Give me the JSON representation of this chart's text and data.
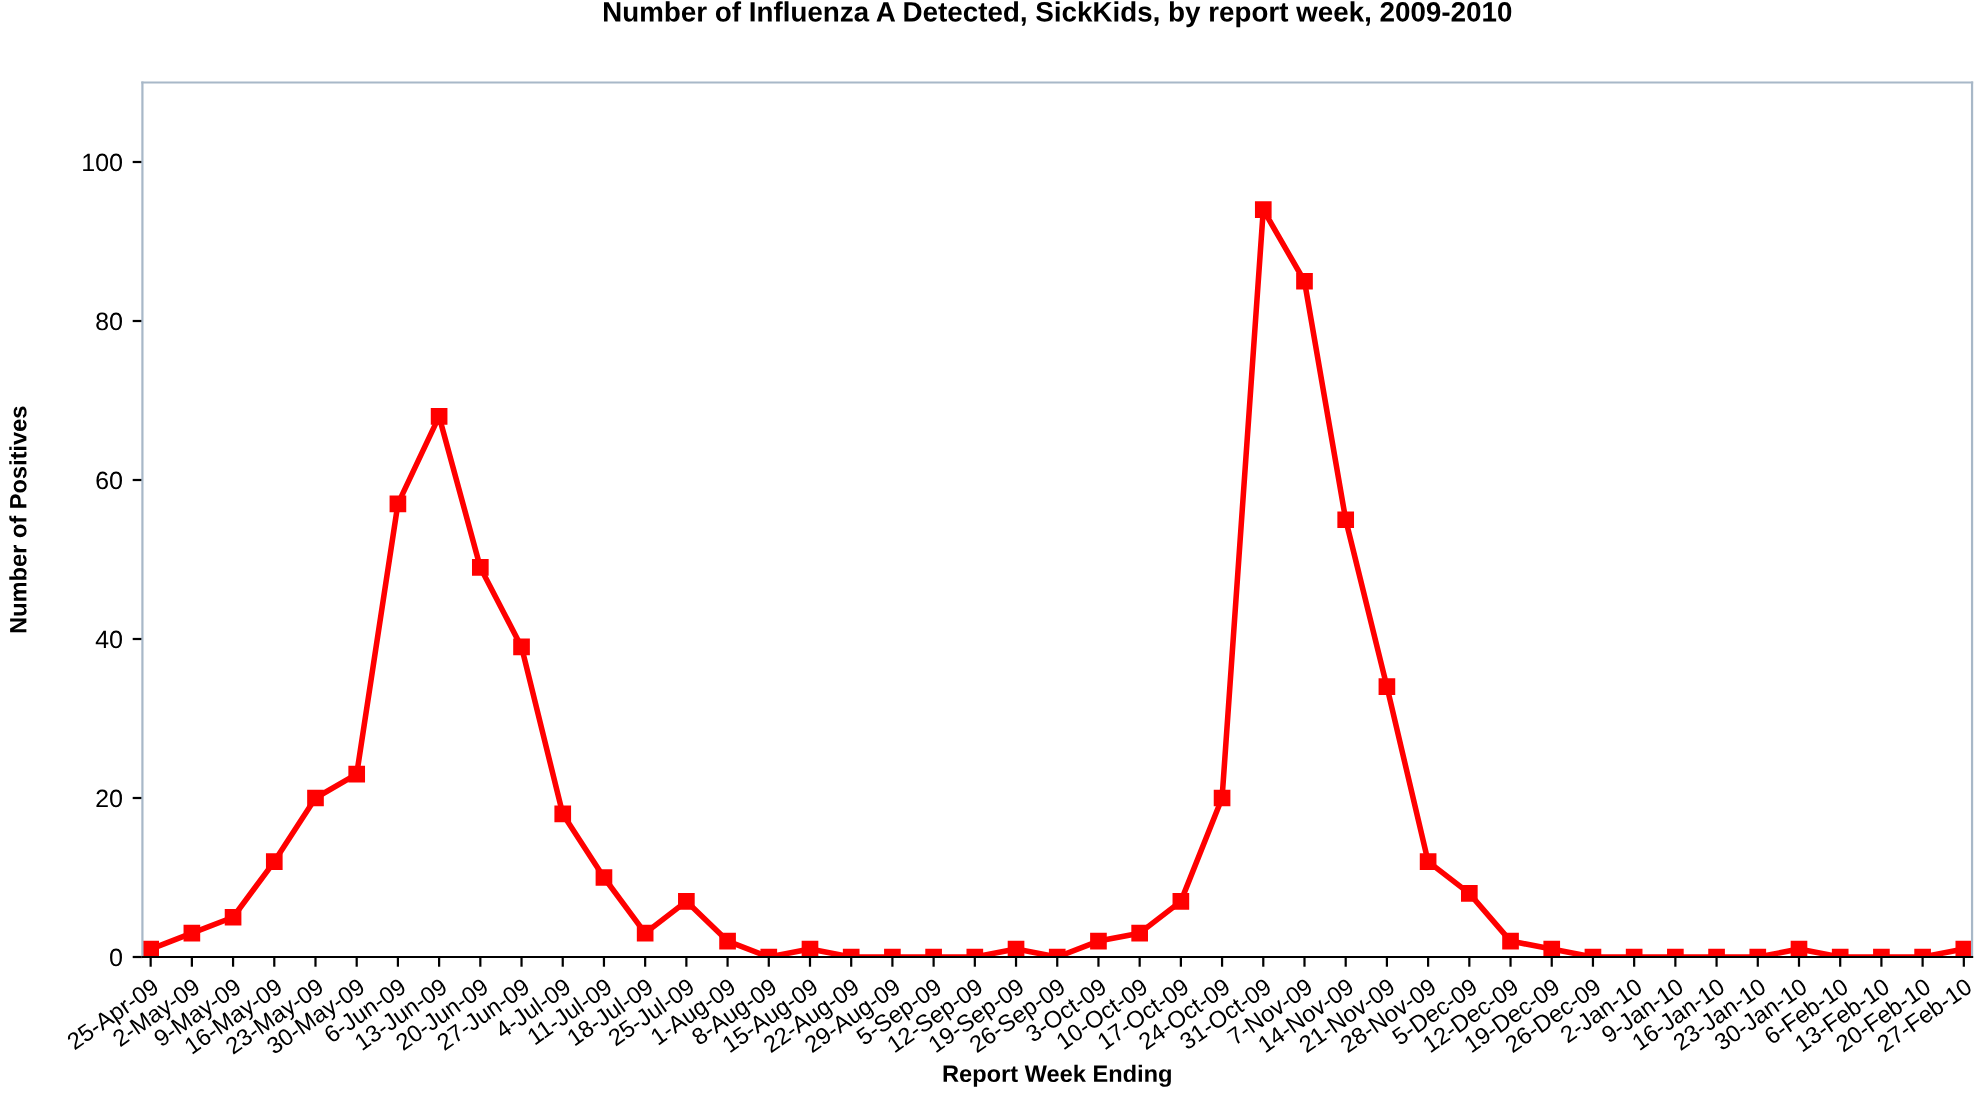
{
  "chart_data": {
    "type": "line",
    "title": "Number of Influenza A Detected, SickKids, by report week, 2009-2010",
    "xlabel": "Report Week Ending",
    "ylabel": "Number of Positives",
    "categories": [
      "25-Apr-09",
      "2-May-09",
      "9-May-09",
      "16-May-09",
      "23-May-09",
      "30-May-09",
      "6-Jun-09",
      "13-Jun-09",
      "20-Jun-09",
      "27-Jun-09",
      "4-Jul-09",
      "11-Jul-09",
      "18-Jul-09",
      "25-Jul-09",
      "1-Aug-09",
      "8-Aug-09",
      "15-Aug-09",
      "22-Aug-09",
      "29-Aug-09",
      "5-Sep-09",
      "12-Sep-09",
      "19-Sep-09",
      "26-Sep-09",
      "3-Oct-09",
      "10-Oct-09",
      "17-Oct-09",
      "24-Oct-09",
      "31-Oct-09",
      "7-Nov-09",
      "14-Nov-09",
      "21-Nov-09",
      "28-Nov-09",
      "5-Dec-09",
      "12-Dec-09",
      "19-Dec-09",
      "26-Dec-09",
      "2-Jan-10",
      "9-Jan-10",
      "16-Jan-10",
      "23-Jan-10",
      "30-Jan-10",
      "6-Feb-10",
      "13-Feb-10",
      "20-Feb-10",
      "27-Feb-10"
    ],
    "series": [
      {
        "color": "#ff0000",
        "values": [
          1,
          3,
          5,
          12,
          20,
          23,
          57,
          68,
          49,
          39,
          18,
          10,
          3,
          7,
          2,
          0,
          1,
          0,
          0,
          0,
          0,
          1,
          0,
          2,
          3,
          7,
          20,
          94,
          85,
          55,
          34,
          12,
          8,
          2,
          1,
          0,
          0,
          0,
          0,
          0,
          1,
          0,
          0,
          0,
          1
        ]
      }
    ],
    "ylim": [
      0,
      110
    ],
    "yticks": [
      0,
      20,
      40,
      60,
      80,
      100
    ],
    "grid": false,
    "legend": false,
    "marker": "square",
    "line_style": "solid"
  }
}
